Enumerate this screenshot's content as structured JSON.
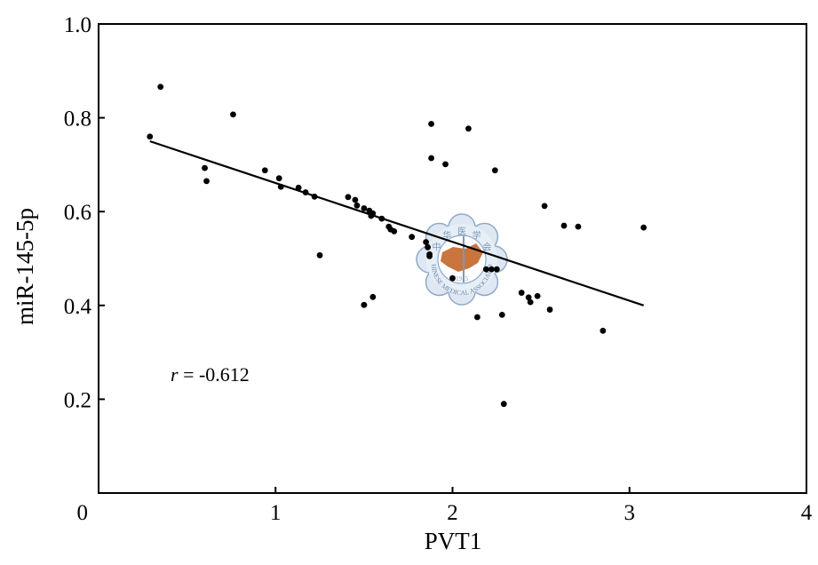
{
  "chart_data": {
    "type": "scatter",
    "xlabel": "PVT1",
    "ylabel": "miR-145-5p",
    "xlim": [
      0,
      4
    ],
    "ylim": [
      0,
      1.0
    ],
    "x_ticks": [
      "0",
      "1",
      "2",
      "3",
      "4"
    ],
    "y_ticks": [
      "0.2",
      "0.4",
      "0.6",
      "0.8",
      "1.0"
    ],
    "grid": false,
    "annotation": {
      "symbol": "r",
      "text": " = -0.612"
    },
    "watermark_text": [
      "中",
      "华",
      "医",
      "学",
      "会",
      "CHINESE MEDICAL ASSOCIATION",
      "1915"
    ],
    "trendline": {
      "x": [
        0.29,
        3.08
      ],
      "y": [
        0.75,
        0.4
      ]
    },
    "points": {
      "x": [
        0.29,
        0.35,
        0.6,
        0.61,
        0.76,
        0.94,
        1.02,
        1.03,
        1.13,
        1.17,
        1.22,
        1.25,
        1.41,
        1.45,
        1.46,
        1.5,
        1.5,
        1.53,
        1.54,
        1.55,
        1.6,
        1.64,
        1.65,
        1.67,
        1.77,
        1.85,
        1.86,
        1.87,
        1.88,
        1.88,
        1.96,
        2.09,
        2.14,
        2.19,
        2.24,
        2.25,
        2.28,
        2.29,
        2.39,
        2.43,
        2.44,
        2.48,
        2.52,
        2.55,
        2.63,
        2.71,
        2.85,
        3.08,
        1.87,
        1.5,
        1.55,
        2.0,
        2.22
      ],
      "y": [
        0.76,
        0.866,
        0.693,
        0.665,
        0.807,
        0.688,
        0.671,
        0.653,
        0.651,
        0.641,
        0.632,
        0.507,
        0.631,
        0.625,
        0.613,
        0.607,
        0.401,
        0.602,
        0.591,
        0.596,
        0.585,
        0.568,
        0.562,
        0.558,
        0.546,
        0.535,
        0.524,
        0.505,
        0.787,
        0.714,
        0.701,
        0.777,
        0.375,
        0.477,
        0.688,
        0.477,
        0.38,
        0.19,
        0.427,
        0.417,
        0.407,
        0.42,
        0.612,
        0.391,
        0.57,
        0.568,
        0.346,
        0.566,
        0.509,
        0.401,
        0.418,
        0.458,
        0.477
      ]
    }
  }
}
